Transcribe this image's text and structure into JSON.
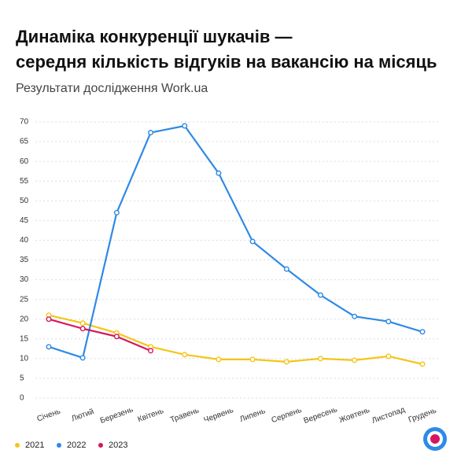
{
  "chart_data": {
    "type": "line",
    "title": [
      "Динаміка конкуренції шукачів —",
      "середня кількість відгуків на вакансію на місяць"
    ],
    "subtitle": "Результати дослідження Work.ua",
    "categories": [
      "Січень",
      "Лютий",
      "Березень",
      "Квітень",
      "Травень",
      "Червень",
      "Липень",
      "Серпень",
      "Вересень",
      "Жовтень",
      "Листопад",
      "Грудень"
    ],
    "series": [
      {
        "name": "2021",
        "color": "#f5c518",
        "values": [
          21,
          19,
          16.5,
          13,
          11,
          9.8,
          9.8,
          9.2,
          10,
          9.6,
          10.6,
          8.6
        ]
      },
      {
        "name": "2022",
        "color": "#2e8ae6",
        "values": [
          13,
          10.2,
          47,
          67.3,
          69,
          57,
          39.7,
          32.7,
          26.1,
          20.7,
          19.4,
          16.8
        ]
      },
      {
        "name": "2023",
        "color": "#d6165f",
        "values": [
          20,
          17.6,
          15.6,
          12,
          null,
          null,
          null,
          null,
          null,
          null,
          null,
          null
        ]
      }
    ],
    "ylim": [
      0,
      70
    ],
    "yticks": [
      0,
      5,
      10,
      15,
      20,
      25,
      30,
      35,
      40,
      45,
      50,
      55,
      60,
      65,
      70
    ],
    "grid": true
  }
}
